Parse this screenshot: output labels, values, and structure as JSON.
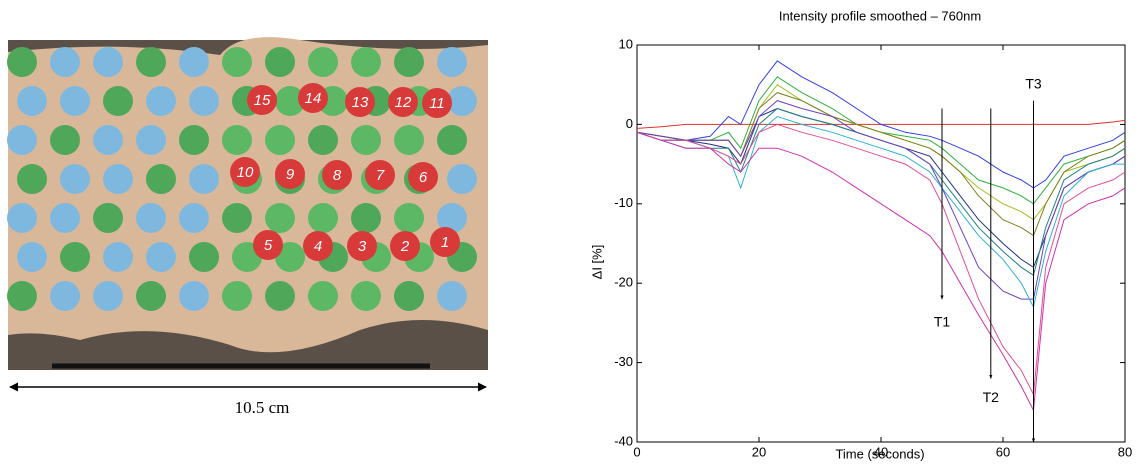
{
  "photo": {
    "electrode_labels": [
      "15",
      "14",
      "13",
      "12",
      "11",
      "10",
      "9",
      "8",
      "7",
      "6",
      "5",
      "4",
      "3",
      "2",
      "1"
    ],
    "scale_label": "10.5 cm"
  },
  "chart_data": {
    "type": "line",
    "title": "Intensity profile smoothed – 760nm",
    "x_label": "Time (seconds)",
    "y_label": "ΔI [%]",
    "xlim": [
      0,
      80
    ],
    "ylim": [
      -40,
      10
    ],
    "xticks": [
      0,
      20,
      40,
      60,
      80
    ],
    "yticks": [
      -40,
      -30,
      -20,
      -10,
      0,
      10
    ],
    "x": [
      0,
      4,
      8,
      12,
      15,
      17,
      20,
      23,
      27,
      32,
      36,
      40,
      44,
      48,
      50,
      53,
      56,
      60,
      63,
      65,
      67,
      70,
      74,
      78,
      80
    ],
    "series": [
      {
        "color": "#e03030",
        "values": [
          -0.5,
          -0.3,
          0,
          0,
          0,
          0,
          0,
          0,
          0,
          0,
          0,
          0,
          0,
          0,
          0,
          0,
          0,
          0,
          0,
          0,
          0,
          0,
          0,
          0.3,
          0.5
        ]
      },
      {
        "color": "#3040e0",
        "values": [
          -1,
          -1.5,
          -2,
          -1.5,
          1,
          0,
          5,
          8,
          6,
          4,
          2,
          0,
          -1,
          -1.5,
          -2,
          -3,
          -4,
          -6,
          -7,
          -8,
          -7,
          -4,
          -3,
          -2,
          -1
        ]
      },
      {
        "color": "#30b040",
        "values": [
          -1,
          -1.5,
          -2,
          -2,
          -1,
          -3,
          3,
          6,
          4,
          2,
          0,
          -1,
          -1.5,
          -2,
          -3,
          -5,
          -7,
          -8,
          -9,
          -10,
          -8,
          -5,
          -4,
          -3,
          -2
        ]
      },
      {
        "color": "#a0c020",
        "values": [
          -1,
          -1.5,
          -2,
          -2,
          -2,
          -4,
          2,
          5,
          3,
          1,
          0,
          -1,
          -2,
          -3,
          -4,
          -6,
          -8,
          -10,
          -11,
          -12,
          -10,
          -6,
          -5,
          -4,
          -3
        ]
      },
      {
        "color": "#808020",
        "values": [
          -1,
          -1.5,
          -2,
          -2,
          -2,
          -4,
          2,
          4,
          3,
          1,
          0,
          -1,
          -2,
          -3,
          -4,
          -6,
          -9,
          -12,
          -13,
          -14,
          -10,
          -6,
          -4,
          -3,
          -2
        ]
      },
      {
        "color": "#203080",
        "values": [
          -1,
          -2,
          -2,
          -2.5,
          -3,
          -5,
          1,
          2,
          1,
          0,
          -1,
          -2,
          -3,
          -4,
          -6,
          -9,
          -12,
          -15,
          -17,
          -18,
          -14,
          -8,
          -6,
          -5,
          -4
        ]
      },
      {
        "color": "#208080",
        "values": [
          -1,
          -2,
          -2,
          -3,
          -3,
          -6,
          0,
          2,
          1,
          0,
          -1,
          -2,
          -3,
          -5,
          -7,
          -10,
          -13,
          -16,
          -18,
          -19,
          -13,
          -7,
          -5,
          -4,
          -3
        ]
      },
      {
        "color": "#7040c0",
        "values": [
          -1,
          -1.5,
          -2,
          -2,
          -2,
          -4,
          1,
          3,
          2,
          1,
          -1,
          -2,
          -3,
          -5,
          -8,
          -13,
          -18,
          -21,
          -22,
          -22,
          -14,
          -8,
          -6,
          -5,
          -4
        ]
      },
      {
        "color": "#30b0d0",
        "values": [
          -1,
          -2,
          -3,
          -3,
          -4,
          -8,
          -1,
          1,
          0,
          -1,
          -2,
          -3,
          -4,
          -6,
          -8,
          -11,
          -14,
          -17,
          -20,
          -23,
          -16,
          -9,
          -6,
          -5,
          -5
        ]
      },
      {
        "color": "#e05090",
        "values": [
          -1,
          -2,
          -2,
          -3,
          -4,
          -5,
          -1,
          0,
          -1,
          -2,
          -3,
          -4,
          -5,
          -7,
          -10,
          -16,
          -22,
          -28,
          -31,
          -34,
          -18,
          -10,
          -8,
          -7,
          -6
        ]
      },
      {
        "color": "#d030b0",
        "values": [
          -1,
          -2,
          -3,
          -3,
          -5,
          -6,
          -3,
          -3,
          -4,
          -6,
          -8,
          -10,
          -12,
          -14,
          -16,
          -20,
          -24,
          -29,
          -33,
          -36,
          -20,
          -12,
          -10,
          -9,
          -8
        ]
      }
    ],
    "annotations": [
      {
        "text": "T1",
        "x": 50,
        "y": -25,
        "arrow_from": 2,
        "arrow_to": -22
      },
      {
        "text": "T2",
        "x": 58,
        "y": -34.5,
        "arrow_from": 2,
        "arrow_to": -32
      },
      {
        "text": "T3",
        "x": 65,
        "y": 5,
        "arrow_from": 3,
        "arrow_to": -40
      }
    ]
  }
}
